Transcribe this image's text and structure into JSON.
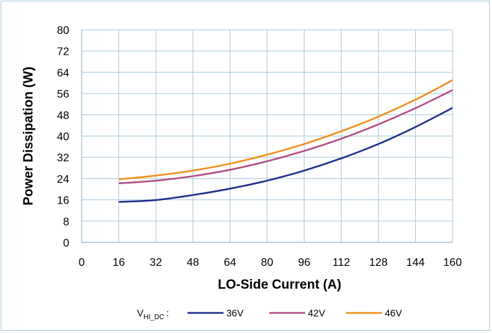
{
  "chart_data": {
    "type": "line",
    "xlabel": "LO-Side Current (A)",
    "ylabel": "Power Dissipation (W)",
    "xlim": [
      0,
      160
    ],
    "ylim": [
      0,
      80
    ],
    "x_ticks": [
      0,
      16,
      32,
      48,
      64,
      80,
      96,
      112,
      128,
      144,
      160
    ],
    "y_ticks": [
      0,
      8,
      16,
      24,
      32,
      40,
      48,
      56,
      64,
      72,
      80
    ],
    "grid": true,
    "legend_position": "bottom",
    "legend_prefix": {
      "main": "V",
      "subscript": "HI_DC",
      "suffix": ":"
    },
    "x": [
      16,
      32,
      48,
      64,
      80,
      96,
      112,
      128,
      144,
      160
    ],
    "series": [
      {
        "name": "36V",
        "color": "#1f2f8c",
        "values": [
          15.2,
          15.9,
          17.8,
          20.2,
          23.2,
          27.0,
          31.6,
          37.0,
          43.4,
          50.6
        ]
      },
      {
        "name": "42V",
        "color": "#b04f86",
        "values": [
          22.2,
          23.2,
          24.9,
          27.3,
          30.5,
          34.4,
          39.0,
          44.4,
          50.5,
          57.3
        ]
      },
      {
        "name": "46V",
        "color": "#f0901e",
        "values": [
          23.7,
          25.1,
          27.0,
          29.6,
          33.0,
          37.0,
          41.8,
          47.3,
          53.7,
          61.0
        ]
      }
    ]
  }
}
